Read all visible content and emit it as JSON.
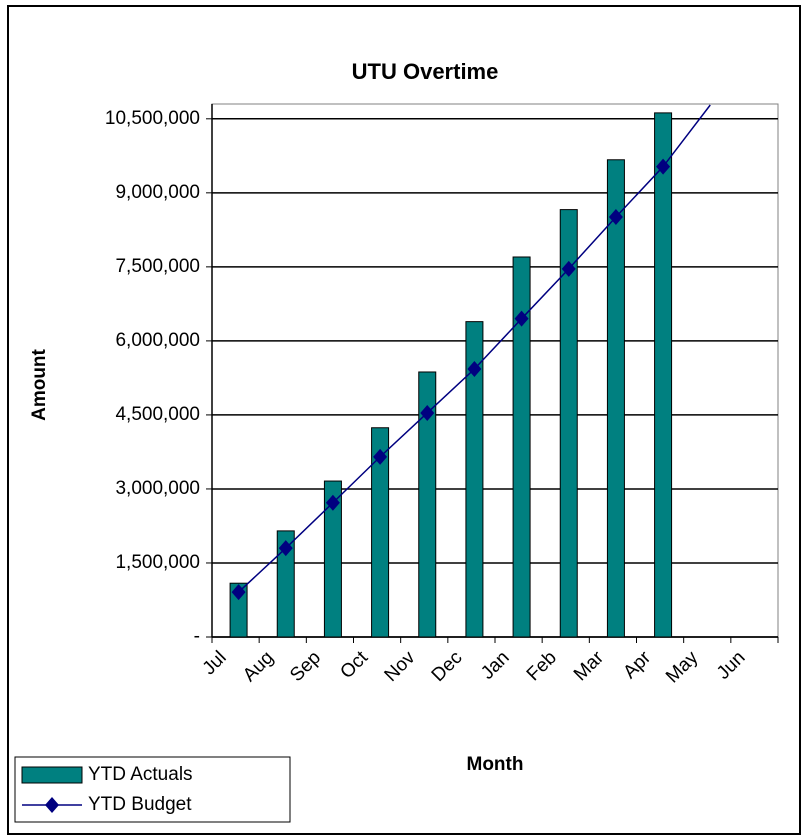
{
  "chart_data": {
    "type": "bar_line",
    "title": "UTU Overtime",
    "x_label": "Month",
    "y_label": "Amount",
    "categories": [
      "Jul",
      "Aug",
      "Sep",
      "Oct",
      "Nov",
      "Dec",
      "Jan",
      "Feb",
      "Mar",
      "Apr",
      "May",
      "Jun"
    ],
    "series": [
      {
        "name": "YTD Actuals",
        "type": "bar",
        "color": "#008080",
        "values": [
          1090000,
          2150000,
          3160000,
          4240000,
          5370000,
          6390000,
          7700000,
          8660000,
          9670000,
          10620000,
          null,
          null
        ]
      },
      {
        "name": "YTD Budget",
        "type": "line",
        "color": "#000080",
        "values": [
          910000,
          1800000,
          2720000,
          3650000,
          4540000,
          5430000,
          6450000,
          7460000,
          8510000,
          9530000,
          10780000,
          null
        ]
      }
    ],
    "ylim": [
      0,
      10800000
    ],
    "yticks": [
      {
        "value": 0,
        "label": "-"
      },
      {
        "value": 1500000,
        "label": "1,500,000"
      },
      {
        "value": 3000000,
        "label": "3,000,000"
      },
      {
        "value": 4500000,
        "label": "4,500,000"
      },
      {
        "value": 6000000,
        "label": "6,000,000"
      },
      {
        "value": 7500000,
        "label": "7,500,000"
      },
      {
        "value": 9000000,
        "label": "9,000,000"
      },
      {
        "value": 10500000,
        "label": "10,500,000"
      }
    ],
    "grid": true,
    "legend": "bottom-left"
  }
}
